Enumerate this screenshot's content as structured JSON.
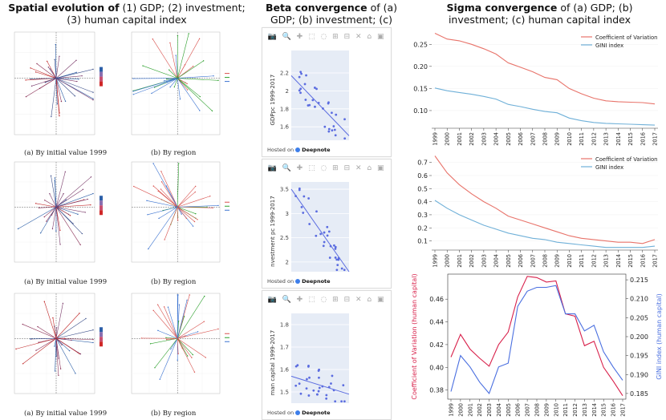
{
  "headers": {
    "spatial": {
      "bold": "Spatial evolution of",
      "rest": " (1) GDP; (2) investment; (3) human capital index"
    },
    "beta": {
      "bold": "Beta convergence",
      "rest": " of (a) GDP; (b) investment; (c) human capital index"
    },
    "sigma": {
      "bold": "Sigma convergence",
      "rest": " of (a) GDP; (b) investment; (c) human capital index"
    }
  },
  "spatial_captions": {
    "row1_left": "(a) By initial value 1999",
    "row1_right": "(b) By region",
    "row2_left": "(a) By initial value 1999",
    "row2_right": "(b) By region",
    "row3_left": "(a) By initial value 1999",
    "row3_right": "(b) By region"
  },
  "beta_cards": [
    {
      "ylabel": "GDPpc 1999-2017",
      "hosted": "Hosted on",
      "brand": "Deepnote"
    },
    {
      "ylabel": "nvestment pc 1999-2017",
      "hosted": "Hosted on",
      "brand": "Deepnote"
    },
    {
      "ylabel": "man capital 1999-2017",
      "hosted": "Hosted on",
      "brand": "Deepnote"
    }
  ],
  "colors": {
    "cov": "#e8736a",
    "gini": "#6fb0d8",
    "cov_hc": "#d8204a",
    "gini_hc": "#4a6fe0",
    "beta_bg": "#e6ecf6",
    "beta_pt": "#5b6ce0"
  },
  "chart_data": [
    {
      "type": "line",
      "x": [
        "1999",
        "2000",
        "2001",
        "2002",
        "2003",
        "2004",
        "2005",
        "2006",
        "2007",
        "2008",
        "2009",
        "2010",
        "2011",
        "2012",
        "2013",
        "2014",
        "2015",
        "2016",
        "2017"
      ],
      "series": [
        {
          "name": "Coefficient of Variation",
          "values": [
            0.275,
            0.262,
            0.258,
            0.25,
            0.24,
            0.228,
            0.208,
            0.198,
            0.188,
            0.175,
            0.17,
            0.15,
            0.138,
            0.128,
            0.122,
            0.12,
            0.119,
            0.118,
            0.115
          ]
        },
        {
          "name": "GINI index",
          "values": [
            0.151,
            0.145,
            0.141,
            0.137,
            0.132,
            0.126,
            0.114,
            0.109,
            0.103,
            0.098,
            0.095,
            0.083,
            0.077,
            0.073,
            0.071,
            0.07,
            0.069,
            0.068,
            0.067
          ]
        }
      ],
      "yticks": [
        "0.25",
        "0.20",
        "0.15",
        "0.10"
      ],
      "ylim": [
        0.06,
        0.285
      ],
      "legend": "top-right"
    },
    {
      "type": "line",
      "x": [
        "1999",
        "2000",
        "2001",
        "2002",
        "2003",
        "2004",
        "2005",
        "2006",
        "2007",
        "2008",
        "2009",
        "2010",
        "2011",
        "2012",
        "2013",
        "2014",
        "2015",
        "2016",
        "2017"
      ],
      "series": [
        {
          "name": "Coefficient of Variation",
          "values": [
            0.75,
            0.62,
            0.53,
            0.46,
            0.4,
            0.35,
            0.29,
            0.26,
            0.23,
            0.2,
            0.17,
            0.14,
            0.12,
            0.11,
            0.1,
            0.09,
            0.09,
            0.08,
            0.11
          ]
        },
        {
          "name": "GINI index",
          "values": [
            0.41,
            0.35,
            0.3,
            0.26,
            0.22,
            0.19,
            0.16,
            0.14,
            0.12,
            0.11,
            0.09,
            0.08,
            0.07,
            0.06,
            0.05,
            0.05,
            0.05,
            0.05,
            0.06
          ]
        }
      ],
      "yticks": [
        "0.7",
        "0.6",
        "0.5",
        "0.4",
        "0.3",
        "0.2",
        "0.1"
      ],
      "ylim": [
        0.03,
        0.79
      ],
      "legend": "top-right"
    },
    {
      "type": "line",
      "x": [
        "1999",
        "2000",
        "2001",
        "2002",
        "2003",
        "2004",
        "2005",
        "2006",
        "2007",
        "2008",
        "2009",
        "2010",
        "2011",
        "2012",
        "2013",
        "2014",
        "2015",
        "2016",
        "2017"
      ],
      "ylabel_left": "Coefficient of Variation (human capital)",
      "ylabel_right": "GINI index (human capital)",
      "series": [
        {
          "name": "Coefficient of Variation (human capital)",
          "axis": "left",
          "values": [
            0.409,
            0.429,
            0.416,
            0.408,
            0.401,
            0.42,
            0.431,
            0.462,
            0.48,
            0.479,
            0.475,
            0.476,
            0.447,
            0.445,
            0.419,
            0.423,
            0.4,
            0.388,
            0.375
          ]
        },
        {
          "name": "GINI index (human capital)",
          "axis": "right",
          "values": [
            0.1855,
            0.195,
            0.192,
            0.188,
            0.185,
            0.192,
            0.193,
            0.208,
            0.212,
            0.213,
            0.213,
            0.2135,
            0.206,
            0.206,
            0.2015,
            0.203,
            0.196,
            0.192,
            0.1885
          ]
        }
      ],
      "yticks_left": [
        "0.46",
        "0.44",
        "0.42",
        "0.40",
        "0.38"
      ],
      "yticks_right": [
        "0.215",
        "0.210",
        "0.205",
        "0.200",
        "0.195",
        "0.190",
        "0.185"
      ],
      "ylim_left": [
        0.372,
        0.482
      ],
      "ylim_right": [
        0.1835,
        0.2165
      ]
    }
  ]
}
